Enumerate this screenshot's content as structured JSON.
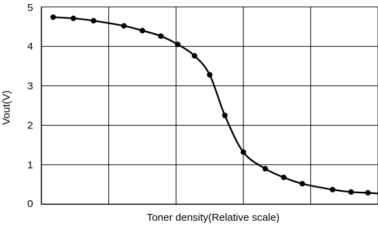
{
  "chart_data": {
    "type": "line",
    "title": "",
    "xlabel": "Toner density(Relative scale)",
    "ylabel": "Vout(V)",
    "ylim": [
      0,
      5
    ],
    "xlim": [
      0,
      10
    ],
    "yticks": [
      "0",
      "1",
      "2",
      "3",
      "4",
      "5"
    ],
    "x_tick_labels": [],
    "grid": true,
    "legend": "none",
    "series": [
      {
        "x": [
          0.35,
          0.95,
          1.55,
          2.45,
          3.0,
          3.55,
          4.05,
          4.55,
          5.0,
          5.45,
          6.0,
          6.65,
          7.2,
          7.75,
          8.65,
          9.2,
          9.7
        ],
        "y": [
          4.74,
          4.71,
          4.65,
          4.52,
          4.4,
          4.26,
          4.05,
          3.76,
          3.28,
          2.25,
          1.32,
          0.9,
          0.68,
          0.52,
          0.37,
          0.31,
          0.29
        ]
      }
    ],
    "colors": {
      "line": "#000000",
      "grid": "#000000",
      "background": "#ffffff"
    }
  }
}
